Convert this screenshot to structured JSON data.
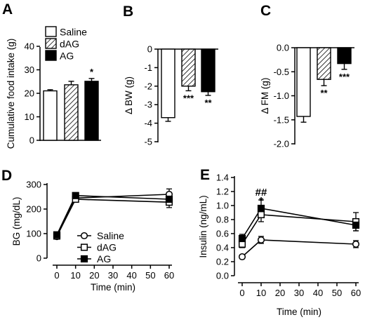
{
  "chart_data": [
    {
      "panel": "A",
      "type": "bar",
      "ylabel": "Cumulative food intake (g)",
      "ylim": [
        0,
        40
      ],
      "yticks": [
        "0",
        "10",
        "20",
        "30",
        "40"
      ],
      "legend": {
        "placement": "top-right",
        "entries": [
          {
            "label": "Saline",
            "fill": "white"
          },
          {
            "label": "dAG",
            "fill": "hatch"
          },
          {
            "label": "AG",
            "fill": "black"
          }
        ]
      },
      "bars": [
        {
          "group": "Saline",
          "fill": "white",
          "value": 21.2,
          "error": 0.5,
          "sig": ""
        },
        {
          "group": "dAG",
          "fill": "hatch",
          "value": 23.8,
          "error": 1.5,
          "sig": ""
        },
        {
          "group": "AG",
          "fill": "black",
          "value": 25.3,
          "error": 1.2,
          "sig": "*"
        }
      ]
    },
    {
      "panel": "B",
      "type": "bar",
      "ylabel": "Δ BW (g)",
      "ylim": [
        -5,
        0
      ],
      "yticks": [
        "0",
        "-1",
        "-2",
        "-3",
        "-4",
        "-5"
      ],
      "bars": [
        {
          "group": "Saline",
          "fill": "white",
          "value": -3.7,
          "error": 0.2,
          "sig": ""
        },
        {
          "group": "dAG",
          "fill": "hatch",
          "value": -2.0,
          "error": 0.25,
          "sig": "***"
        },
        {
          "group": "AG",
          "fill": "black",
          "value": -2.3,
          "error": 0.2,
          "sig": "**"
        }
      ]
    },
    {
      "panel": "C",
      "type": "bar",
      "ylabel": "Δ FM (g)",
      "ylim": [
        -2.0,
        0.0
      ],
      "yticks": [
        "0.0",
        "-0.5",
        "-1.0",
        "-1.5",
        "-2.0"
      ],
      "bars": [
        {
          "group": "Saline",
          "fill": "white",
          "value": -1.43,
          "error": 0.12,
          "sig": ""
        },
        {
          "group": "dAG",
          "fill": "hatch",
          "value": -0.66,
          "error": 0.13,
          "sig": "**"
        },
        {
          "group": "AG",
          "fill": "black",
          "value": -0.33,
          "error": 0.12,
          "sig": "***"
        }
      ]
    },
    {
      "panel": "D",
      "type": "line",
      "xlabel": "Time (min)",
      "ylabel": "BG (mg/dL)",
      "x": [
        0,
        10,
        60
      ],
      "xticks": [
        "0",
        "10",
        "20",
        "30",
        "40",
        "50",
        "60"
      ],
      "yticks": [
        "0",
        "100",
        "200",
        "300"
      ],
      "xlim": [
        0,
        60
      ],
      "ylim": [
        0,
        300
      ],
      "legend": {
        "placement": "bottom-center",
        "entries": [
          "Saline",
          "dAG",
          "AG"
        ]
      },
      "series": [
        {
          "name": "Saline",
          "marker": "circle-open",
          "values": [
            88,
            245,
            260
          ],
          "errors": [
            8,
            10,
            22
          ]
        },
        {
          "name": "dAG",
          "marker": "square-open",
          "values": [
            90,
            240,
            228
          ],
          "errors": [
            8,
            10,
            22
          ]
        },
        {
          "name": "AG",
          "marker": "square-filled",
          "values": [
            95,
            255,
            240
          ],
          "errors": [
            8,
            10,
            20
          ]
        }
      ]
    },
    {
      "panel": "E",
      "type": "line",
      "xlabel": "Time (min)",
      "ylabel": "Insulin (ng/mL)",
      "x": [
        0,
        10,
        60
      ],
      "xticks": [
        "0",
        "10",
        "20",
        "30",
        "40",
        "50",
        "60"
      ],
      "yticks": [
        "0.0",
        "0.2",
        "0.4",
        "0.6",
        "0.8",
        "1.0",
        "1.2",
        "1.4"
      ],
      "xlim": [
        0,
        60
      ],
      "ylim": [
        0,
        1.4
      ],
      "annotations": [
        {
          "x": 10,
          "y": 1.18,
          "text": "##"
        },
        {
          "x": 10,
          "y": 1.06,
          "text": "*"
        }
      ],
      "series": [
        {
          "name": "Saline",
          "marker": "circle-open",
          "values": [
            0.27,
            0.51,
            0.45
          ],
          "errors": [
            0.02,
            0.05,
            0.05
          ]
        },
        {
          "name": "dAG",
          "marker": "square-open",
          "values": [
            0.45,
            0.87,
            0.77
          ],
          "errors": [
            0.05,
            0.1,
            0.13
          ]
        },
        {
          "name": "AG",
          "marker": "square-filled",
          "values": [
            0.53,
            0.96,
            0.72
          ],
          "errors": [
            0.06,
            0.12,
            0.08
          ]
        }
      ]
    }
  ]
}
